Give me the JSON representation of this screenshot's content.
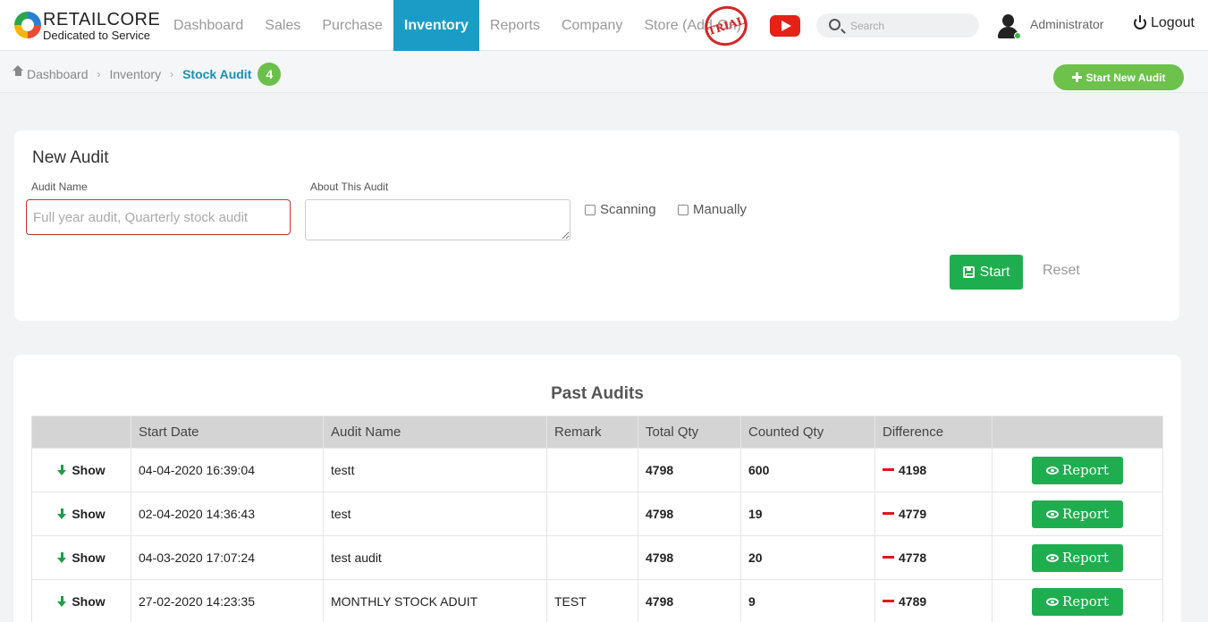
{
  "header": {
    "brand_name": "RETAILCORE",
    "brand_tagline": "Dedicated to Service",
    "nav": [
      {
        "label": "Dashboard",
        "active": false
      },
      {
        "label": "Sales",
        "active": false
      },
      {
        "label": "Purchase",
        "active": false
      },
      {
        "label": "Inventory",
        "active": true
      },
      {
        "label": "Reports",
        "active": false
      },
      {
        "label": "Company",
        "active": false
      },
      {
        "label": "Store (Add-On)",
        "active": false
      }
    ],
    "trial_stamp": "TRIAL",
    "search_placeholder": "Search",
    "user_name": "Administrator",
    "logout_label": "Logout",
    "accent_color": "#1b9cc6"
  },
  "breadcrumb": {
    "items": [
      "Dashboard",
      "Inventory",
      "Stock Audit"
    ],
    "count_badge": "4"
  },
  "start_new_audit_label": "Start New Audit",
  "new_audit": {
    "title": "New Audit",
    "audit_name_label": "Audit Name",
    "audit_name_placeholder": "Full year audit, Quarterly stock audit",
    "about_label": "About This Audit",
    "option_scanning": "Scanning",
    "option_manually": "Manually",
    "start_label": "Start",
    "reset_label": "Reset"
  },
  "past_audits": {
    "title": "Past Audits",
    "columns": [
      "",
      "Start Date",
      "Audit Name",
      "Remark",
      "Total Qty",
      "Counted Qty",
      "Difference",
      ""
    ],
    "show_label": "Show",
    "report_label": "Report",
    "rows": [
      {
        "start_date": "04-04-2020 16:39:04",
        "audit_name": "testt",
        "remark": "",
        "total_qty": "4798",
        "counted_qty": "600",
        "difference": "4198"
      },
      {
        "start_date": "02-04-2020 14:36:43",
        "audit_name": "test",
        "remark": "",
        "total_qty": "4798",
        "counted_qty": "19",
        "difference": "4779"
      },
      {
        "start_date": "04-03-2020 17:07:24",
        "audit_name": "test audit",
        "remark": "",
        "total_qty": "4798",
        "counted_qty": "20",
        "difference": "4778"
      },
      {
        "start_date": "27-02-2020 14:23:35",
        "audit_name": "MONTHLY STOCK ADUIT",
        "remark": "TEST",
        "total_qty": "4798",
        "counted_qty": "9",
        "difference": "4789"
      }
    ]
  }
}
